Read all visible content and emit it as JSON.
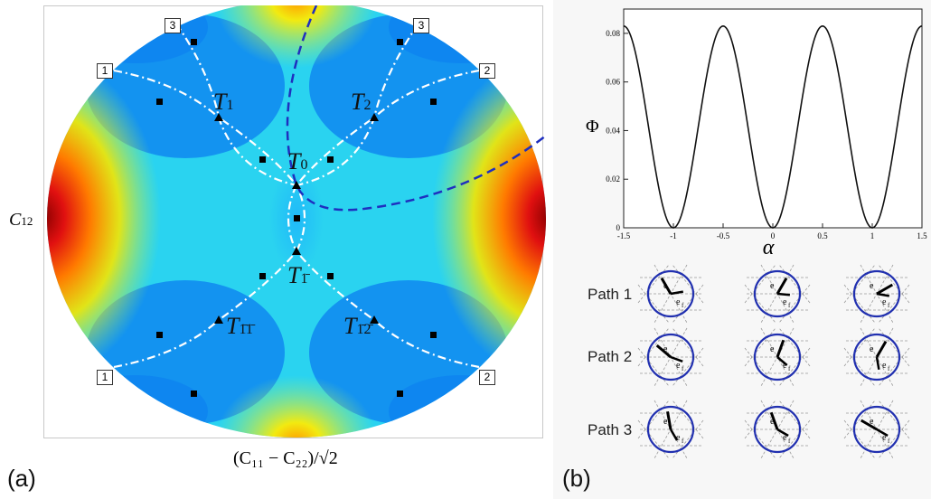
{
  "panel_a": {
    "label": "(a)",
    "y_axis_label": "C",
    "y_axis_sub": "12",
    "x_axis_label": "(C₁₁ − C₂₂)/√2",
    "vertices": {
      "t1": {
        "main": "T",
        "sub": "1"
      },
      "t2": {
        "main": "T",
        "sub": "2"
      },
      "t0": {
        "main": "T",
        "sub": "0"
      },
      "tbar1": {
        "main": "T",
        "sub": "1̄"
      },
      "tbar11": {
        "main": "T",
        "sub": "1̄1̄"
      },
      "tbar12": {
        "main": "T",
        "sub": "1̄2̄"
      }
    },
    "path_tags": [
      "1",
      "2",
      "3"
    ]
  },
  "panel_b": {
    "label": "(b)",
    "plot_ylabel": "Φ",
    "plot_xlabel": "α",
    "x_ticks": [
      "-1.5",
      "-1",
      "-0.5",
      "0",
      "0.5",
      "1",
      "1.5"
    ],
    "y_ticks": [
      "0",
      "0.02",
      "0.04",
      "0.06",
      "0.08"
    ],
    "paths": [
      "Path 1",
      "Path 2",
      "Path 3"
    ],
    "vector_labels": {
      "e": "e",
      "ef": "e",
      "ef_sub": "f"
    }
  },
  "chart_data": {
    "type": "line",
    "title": "",
    "xlabel": "α",
    "ylabel": "Φ",
    "xlim": [
      -1.5,
      1.5
    ],
    "ylim": [
      0,
      0.09
    ],
    "series": [
      {
        "x": [
          -1.5,
          -1.25,
          -1.0,
          -0.75,
          -0.5,
          -0.25,
          0.0,
          0.25,
          0.5,
          0.75,
          1.0,
          1.25,
          1.5
        ],
        "y": [
          0.083,
          0.0415,
          0.0,
          0.0415,
          0.083,
          0.0415,
          0.0,
          0.0415,
          0.083,
          0.0415,
          0.0,
          0.0415,
          0.083
        ]
      }
    ]
  },
  "colors": {
    "dashed_blue": "#1f2fbf",
    "dashed_white": "#ffffff",
    "path_circle": "#2130b0",
    "curve": "#111111"
  }
}
